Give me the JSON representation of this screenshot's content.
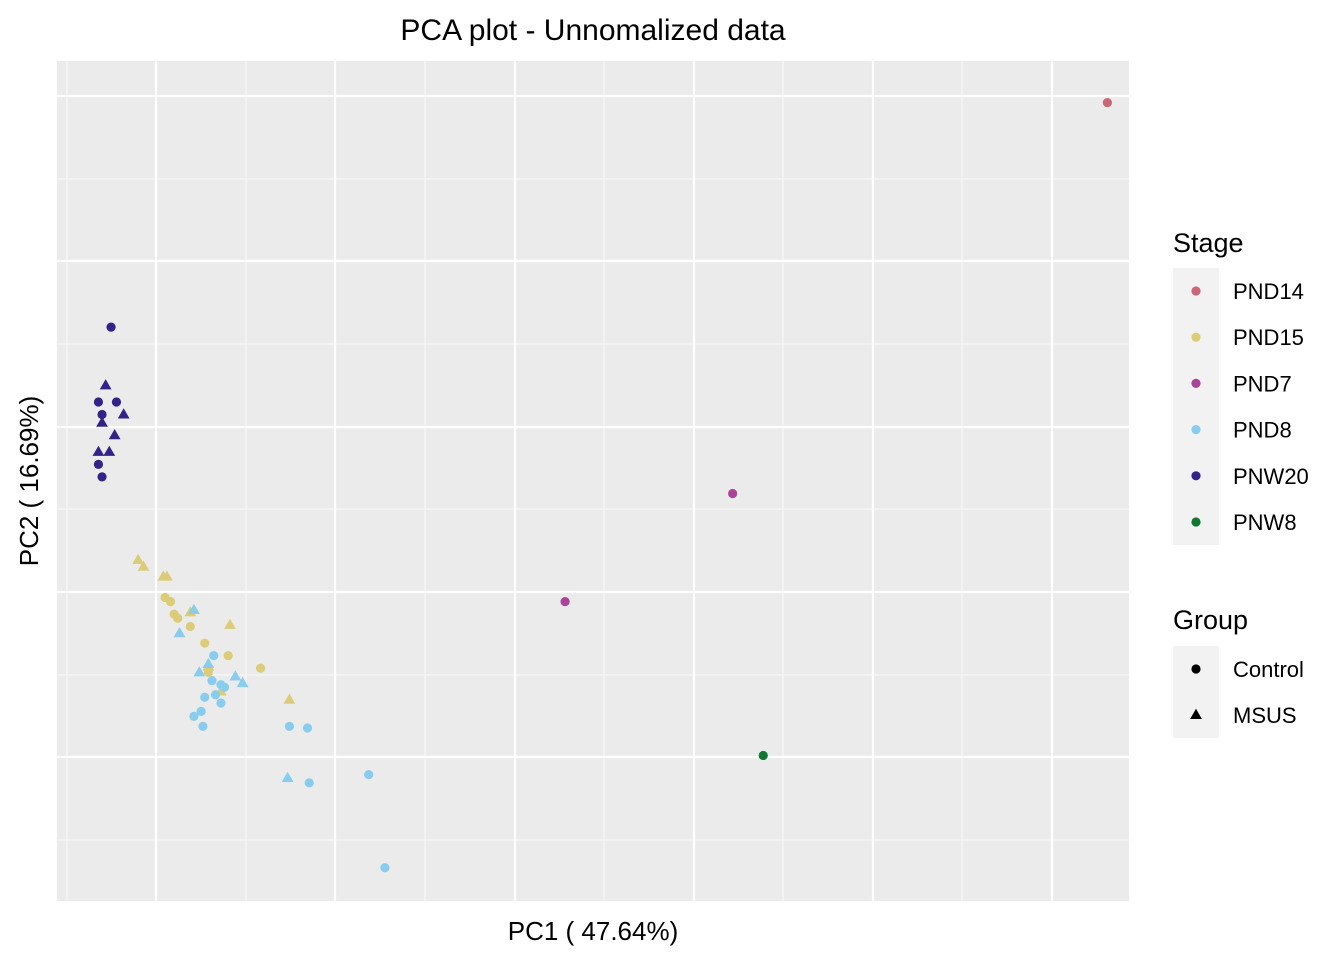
{
  "chart_data": {
    "type": "scatter",
    "title": "PCA plot - Unnomalized data",
    "xlabel": "PC1 ( 47.64%)",
    "ylabel": "PC2 ( 16.69%)",
    "xlim": [
      -0.25,
      5.7
    ],
    "ylim": [
      -5.6,
      4.5
    ],
    "x_ticks_shown": false,
    "y_ticks_shown": false,
    "grid": true,
    "legend_position": "right",
    "legends": {
      "stage": {
        "title": "Stage",
        "entries": [
          {
            "label": "PND14",
            "color": "#CC6677"
          },
          {
            "label": "PND15",
            "color": "#DDCC77"
          },
          {
            "label": "PND7",
            "color": "#AA4499"
          },
          {
            "label": "PND8",
            "color": "#88CCEE"
          },
          {
            "label": "PNW20",
            "color": "#332288"
          },
          {
            "label": "PNW8",
            "color": "#117733"
          }
        ]
      },
      "group": {
        "title": "Group",
        "entries": [
          {
            "label": "Control",
            "shape": "circle"
          },
          {
            "label": "MSUS",
            "shape": "triangle"
          }
        ]
      }
    },
    "series": [
      {
        "stage": "PND14",
        "points": [
          {
            "x": 5.58,
            "y": 4.0,
            "group": "Control"
          }
        ]
      },
      {
        "stage": "PND7",
        "points": [
          {
            "x": 3.5,
            "y": -0.7,
            "group": "Control"
          },
          {
            "x": 2.57,
            "y": -2.0,
            "group": "Control"
          }
        ]
      },
      {
        "stage": "PNW8",
        "points": [
          {
            "x": 3.67,
            "y": -3.85,
            "group": "Control"
          }
        ]
      },
      {
        "stage": "PNW20",
        "points": [
          {
            "x": 0.05,
            "y": 1.3,
            "group": "Control"
          },
          {
            "x": -0.02,
            "y": 0.4,
            "group": "Control"
          },
          {
            "x": 0.08,
            "y": 0.4,
            "group": "Control"
          },
          {
            "x": 0.0,
            "y": 0.25,
            "group": "Control"
          },
          {
            "x": -0.02,
            "y": -0.35,
            "group": "Control"
          },
          {
            "x": 0.0,
            "y": -0.5,
            "group": "Control"
          },
          {
            "x": 0.02,
            "y": 0.6,
            "group": "MSUS"
          },
          {
            "x": 0.12,
            "y": 0.25,
            "group": "MSUS"
          },
          {
            "x": 0.0,
            "y": 0.15,
            "group": "MSUS"
          },
          {
            "x": 0.07,
            "y": 0.0,
            "group": "MSUS"
          },
          {
            "x": -0.02,
            "y": -0.2,
            "group": "MSUS"
          },
          {
            "x": 0.04,
            "y": -0.2,
            "group": "MSUS"
          }
        ]
      },
      {
        "stage": "PND15",
        "points": [
          {
            "x": 0.35,
            "y": -1.95,
            "group": "Control"
          },
          {
            "x": 0.38,
            "y": -2.0,
            "group": "Control"
          },
          {
            "x": 0.4,
            "y": -2.15,
            "group": "Control"
          },
          {
            "x": 0.42,
            "y": -2.2,
            "group": "Control"
          },
          {
            "x": 0.49,
            "y": -2.3,
            "group": "Control"
          },
          {
            "x": 0.57,
            "y": -2.5,
            "group": "Control"
          },
          {
            "x": 0.7,
            "y": -2.65,
            "group": "Control"
          },
          {
            "x": 0.88,
            "y": -2.8,
            "group": "Control"
          },
          {
            "x": 0.59,
            "y": -2.85,
            "group": "Control"
          },
          {
            "x": 0.2,
            "y": -1.5,
            "group": "MSUS"
          },
          {
            "x": 0.23,
            "y": -1.58,
            "group": "MSUS"
          },
          {
            "x": 0.34,
            "y": -1.7,
            "group": "MSUS"
          },
          {
            "x": 0.36,
            "y": -1.7,
            "group": "MSUS"
          },
          {
            "x": 0.49,
            "y": -2.13,
            "group": "MSUS"
          },
          {
            "x": 0.71,
            "y": -2.28,
            "group": "MSUS"
          },
          {
            "x": 0.59,
            "y": -2.78,
            "group": "MSUS"
          },
          {
            "x": 0.66,
            "y": -3.08,
            "group": "MSUS"
          },
          {
            "x": 1.04,
            "y": -3.18,
            "group": "MSUS"
          }
        ]
      },
      {
        "stage": "PND8",
        "points": [
          {
            "x": 0.62,
            "y": -2.65,
            "group": "Control"
          },
          {
            "x": 0.61,
            "y": -2.95,
            "group": "Control"
          },
          {
            "x": 0.66,
            "y": -3.0,
            "group": "Control"
          },
          {
            "x": 0.68,
            "y": -3.03,
            "group": "Control"
          },
          {
            "x": 0.63,
            "y": -3.12,
            "group": "Control"
          },
          {
            "x": 0.66,
            "y": -3.22,
            "group": "Control"
          },
          {
            "x": 0.57,
            "y": -3.15,
            "group": "Control"
          },
          {
            "x": 0.55,
            "y": -3.32,
            "group": "Control"
          },
          {
            "x": 0.51,
            "y": -3.38,
            "group": "Control"
          },
          {
            "x": 0.56,
            "y": -3.5,
            "group": "Control"
          },
          {
            "x": 1.04,
            "y": -3.5,
            "group": "Control"
          },
          {
            "x": 1.14,
            "y": -3.52,
            "group": "Control"
          },
          {
            "x": 1.48,
            "y": -4.08,
            "group": "Control"
          },
          {
            "x": 1.15,
            "y": -4.18,
            "group": "Control"
          },
          {
            "x": 1.57,
            "y": -5.2,
            "group": "Control"
          },
          {
            "x": 0.51,
            "y": -2.1,
            "group": "MSUS"
          },
          {
            "x": 0.43,
            "y": -2.38,
            "group": "MSUS"
          },
          {
            "x": 0.59,
            "y": -2.75,
            "group": "MSUS"
          },
          {
            "x": 0.54,
            "y": -2.85,
            "group": "MSUS"
          },
          {
            "x": 0.74,
            "y": -2.9,
            "group": "MSUS"
          },
          {
            "x": 0.78,
            "y": -2.98,
            "group": "MSUS"
          },
          {
            "x": 1.03,
            "y": -4.12,
            "group": "MSUS"
          }
        ]
      }
    ]
  }
}
